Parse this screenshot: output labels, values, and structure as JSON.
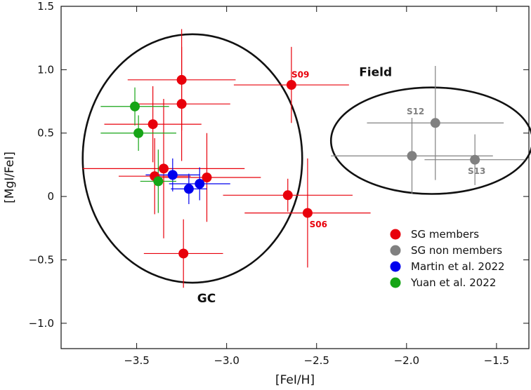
{
  "chart_data": {
    "type": "scatter",
    "title": "",
    "xlabel": "[FeI/H]",
    "ylabel": "[MgI/FeI]",
    "xlim": [
      -3.92,
      -1.32
    ],
    "ylim": [
      -1.2,
      1.5
    ],
    "x_ticks": [
      -3.5,
      -3.0,
      -2.5,
      -2.0,
      -1.5
    ],
    "x_tick_labels": [
      "−3.5",
      "−3.0",
      "−2.5",
      "−2.0",
      "−1.5"
    ],
    "y_ticks": [
      -1.0,
      -0.5,
      0.0,
      0.5,
      1.0,
      1.5
    ],
    "y_tick_labels": [
      "−1.0",
      "−0.5",
      "0",
      "0.5",
      "1.0",
      "1.5"
    ],
    "grid": false,
    "legend_position": "lower-right",
    "series": [
      {
        "name": "SG members",
        "color": "#e8000b",
        "points": [
          {
            "x": -3.25,
            "y": 0.92,
            "xerr": 0.3,
            "yerr": 0.4
          },
          {
            "x": -3.25,
            "y": 0.73,
            "xerr": 0.27,
            "yerr": 0.45
          },
          {
            "x": -3.41,
            "y": 0.57,
            "xerr": 0.27,
            "yerr": 0.3
          },
          {
            "x": -2.64,
            "y": 0.88,
            "xerr": 0.32,
            "yerr": 0.3
          },
          {
            "x": -3.35,
            "y": 0.22,
            "xerr": 0.45,
            "yerr": 0.55
          },
          {
            "x": -3.4,
            "y": 0.16,
            "xerr": 0.2,
            "yerr": 0.3
          },
          {
            "x": -3.11,
            "y": 0.15,
            "xerr": 0.3,
            "yerr": 0.35
          },
          {
            "x": -2.66,
            "y": 0.01,
            "xerr": 0.36,
            "yerr": 0.13
          },
          {
            "x": -2.55,
            "y": -0.13,
            "xerr": 0.35,
            "yerr": 0.43
          },
          {
            "x": -3.24,
            "y": -0.45,
            "xerr": 0.22,
            "yerr": 0.27
          }
        ]
      },
      {
        "name": "SG non members",
        "color": "#808080",
        "points": [
          {
            "x": -1.84,
            "y": 0.58,
            "xerr": 0.38,
            "yerr": 0.45
          },
          {
            "x": -1.97,
            "y": 0.32,
            "xerr": 0.45,
            "yerr": 0.3
          },
          {
            "x": -1.62,
            "y": 0.29,
            "xerr": 0.28,
            "yerr": 0.2
          }
        ]
      },
      {
        "name": "Martin et al. 2022",
        "color": "#0000ee",
        "points": [
          {
            "x": -3.3,
            "y": 0.17,
            "xerr": 0.15,
            "yerr": 0.13
          },
          {
            "x": -3.21,
            "y": 0.06,
            "xerr": 0.1,
            "yerr": 0.12
          },
          {
            "x": -3.15,
            "y": 0.1,
            "xerr": 0.17,
            "yerr": 0.13
          }
        ]
      },
      {
        "name": "Yuan et al. 2022",
        "color": "#16a516",
        "points": [
          {
            "x": -3.51,
            "y": 0.71,
            "xerr": 0.19,
            "yerr": 0.15
          },
          {
            "x": -3.49,
            "y": 0.5,
            "xerr": 0.21,
            "yerr": 0.14
          },
          {
            "x": -3.38,
            "y": 0.12,
            "xerr": 0.1,
            "yerr": 0.25
          }
        ]
      }
    ],
    "regions": [
      {
        "label": "GC",
        "cx": -3.19,
        "cy": 0.3,
        "rx": 0.61,
        "ry": 0.98
      },
      {
        "label": "Field",
        "cx": -1.86,
        "cy": 0.44,
        "rx": 0.56,
        "ry": 0.42
      }
    ],
    "annotations": [
      {
        "text": "S09",
        "x": -2.59,
        "y": 0.96,
        "color": "#e8000b"
      },
      {
        "text": "S06",
        "x": -2.49,
        "y": -0.22,
        "color": "#e8000b"
      },
      {
        "text": "S12",
        "x": -1.95,
        "y": 0.67,
        "color": "#808080"
      },
      {
        "text": "S13",
        "x": -1.61,
        "y": 0.2,
        "color": "#808080"
      }
    ]
  }
}
